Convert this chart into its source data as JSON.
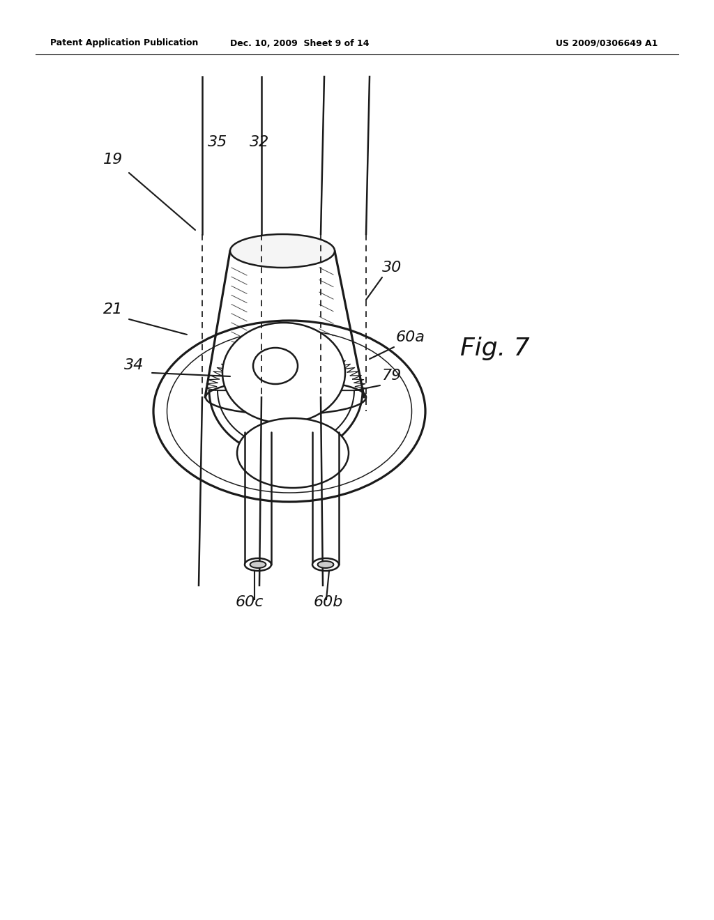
{
  "background_color": "#ffffff",
  "header_left": "Patent Application Publication",
  "header_middle": "Dec. 10, 2009  Sheet 9 of 14",
  "header_right": "US 2009/0306649 A1",
  "figure_label": "Fig. 7",
  "line_color": "#1a1a1a",
  "line_width": 1.8
}
